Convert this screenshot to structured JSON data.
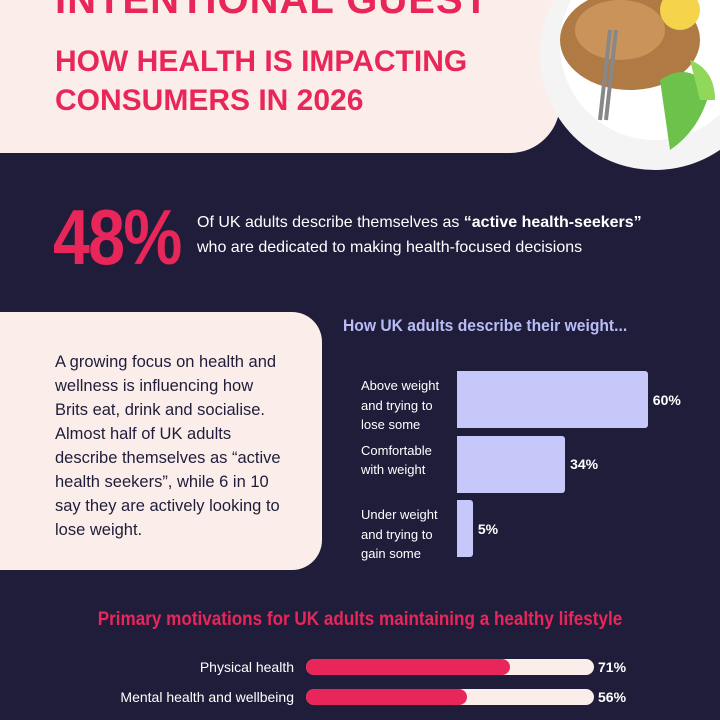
{
  "header": {
    "title": "INTENTIONAL GUEST",
    "subtitle": [
      "HOW HEALTH IS IMPACTING",
      "CONSUMERS IN 2026"
    ]
  },
  "stat": {
    "value": "48%",
    "text_before": "Of UK adults describe themselves as ",
    "text_bold": "“active health-seekers”",
    "text_after": "who are dedicated to making health-focused decisions"
  },
  "body": {
    "lines": [
      "A growing focus on health and",
      "wellness is influencing how",
      "Brits eat, drink and socialise.",
      "Almost half of UK adults",
      "describe themselves as “active",
      "health seekers”, while 6 in 10",
      "say they are actively looking to",
      "lose weight."
    ]
  },
  "chart_data": [
    {
      "type": "hbar",
      "title": "How UK adults describe their weight...",
      "categories": [
        "Above weight and trying to lose some",
        "Comfortable with weight",
        "Under weight and trying to gain some"
      ],
      "values": [
        60,
        34,
        5
      ],
      "value_labels": [
        "60%",
        "34%",
        "5%"
      ],
      "color": "#c5c8f8"
    },
    {
      "type": "track",
      "title": "Primary motivations for UK adults maintaining a healthy lifestyle",
      "categories": [
        "Physical health",
        "Mental health and wellbeing"
      ],
      "values": [
        71,
        56
      ],
      "value_labels": [
        "71%",
        "56%"
      ],
      "color": "#e8265a"
    }
  ]
}
